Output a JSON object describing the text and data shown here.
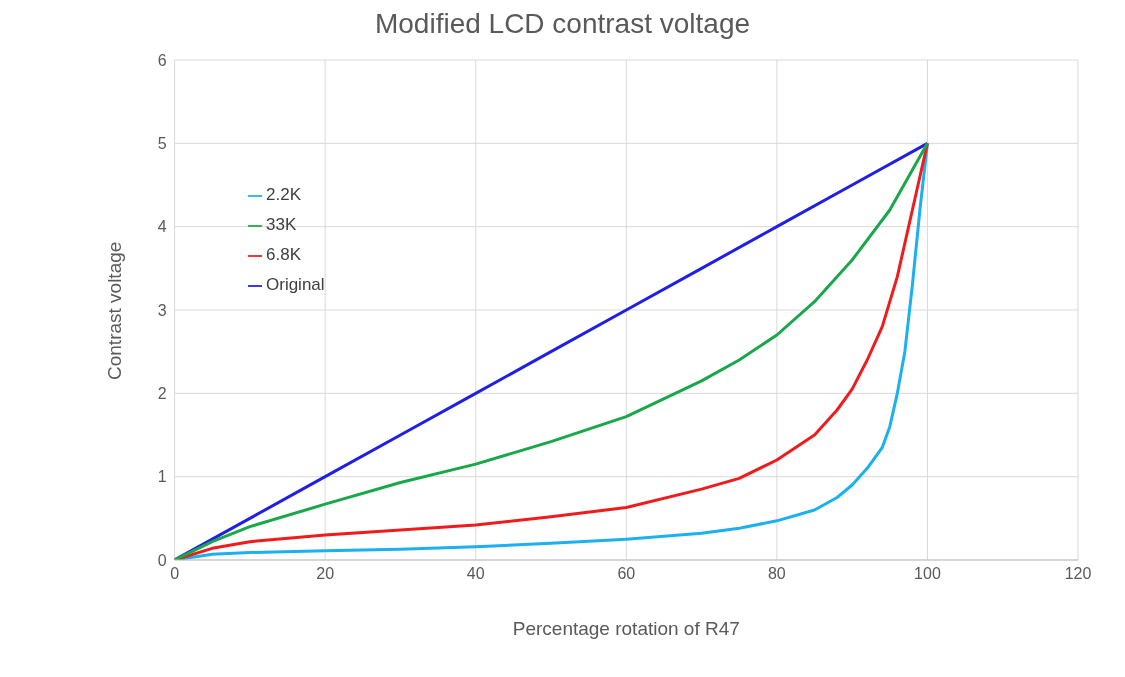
{
  "chart_data": {
    "type": "line",
    "title": "Modified LCD contrast voltage",
    "xlabel": "Percentage rotation of R47",
    "ylabel": "Contrast voltage",
    "xlim": [
      0,
      120
    ],
    "xticks": [
      0,
      20,
      40,
      60,
      80,
      100,
      120
    ],
    "ylim": [
      0,
      6
    ],
    "yticks": [
      0,
      1,
      2,
      3,
      4,
      5,
      6
    ],
    "grid": true,
    "legend": "top left",
    "marker": "none",
    "line_style": "solid",
    "series": [
      {
        "name": "Original",
        "color": "#1f1fe6",
        "x": [
          0,
          10,
          20,
          30,
          40,
          50,
          60,
          70,
          80,
          90,
          100
        ],
        "values": [
          0,
          0.5,
          1.0,
          1.5,
          2.0,
          2.5,
          3.0,
          3.5,
          4.0,
          4.5,
          5
        ]
      },
      {
        "name": "2.2K",
        "color": "#1cb0f0",
        "x": [
          0,
          5,
          10,
          20,
          30,
          40,
          50,
          60,
          70,
          75,
          80,
          85,
          88,
          90,
          92,
          94,
          95,
          96,
          97,
          98,
          99,
          100
        ],
        "values": [
          0,
          0.07,
          0.09,
          0.11,
          0.13,
          0.16,
          0.2,
          0.25,
          0.32,
          0.38,
          0.47,
          0.6,
          0.75,
          0.9,
          1.1,
          1.35,
          1.6,
          2.0,
          2.5,
          3.3,
          4.2,
          5
        ]
      },
      {
        "name": "6.8K",
        "color": "#ee1c1c",
        "x": [
          0,
          5,
          10,
          20,
          30,
          40,
          50,
          60,
          70,
          75,
          80,
          85,
          88,
          90,
          92,
          94,
          96,
          98,
          100
        ],
        "values": [
          0,
          0.14,
          0.22,
          0.3,
          0.36,
          0.42,
          0.52,
          0.63,
          0.85,
          0.98,
          1.2,
          1.5,
          1.8,
          2.05,
          2.4,
          2.8,
          3.4,
          4.2,
          5
        ]
      },
      {
        "name": "33K",
        "color": "#18a84a",
        "x": [
          0,
          5,
          10,
          20,
          30,
          40,
          50,
          60,
          70,
          75,
          80,
          85,
          90,
          95,
          100
        ],
        "values": [
          0,
          0.22,
          0.4,
          0.67,
          0.93,
          1.15,
          1.42,
          1.72,
          2.15,
          2.4,
          2.7,
          3.1,
          3.6,
          4.2,
          5
        ]
      }
    ]
  }
}
